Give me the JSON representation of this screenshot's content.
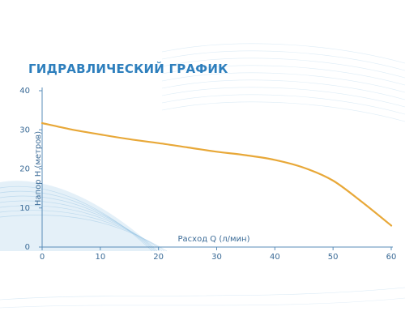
{
  "chart_data": {
    "type": "line",
    "title": "ГИДРАВЛИЧЕСКИЙ ГРАФИК",
    "xlabel": "Расход Q (л/мин)",
    "ylabel": "Напор Н (метров)",
    "xlim": [
      0,
      60
    ],
    "ylim": [
      0,
      40
    ],
    "x_ticks": [
      "0",
      "10",
      "20",
      "30",
      "40",
      "50",
      "60"
    ],
    "y_ticks": [
      "0",
      "10",
      "20",
      "30",
      "40"
    ],
    "grid": "none",
    "series": [
      {
        "color": "#e8a838",
        "points": [
          [
            0,
            31.7
          ],
          [
            5,
            30.1
          ],
          [
            10,
            28.8
          ],
          [
            15,
            27.6
          ],
          [
            20,
            26.6
          ],
          [
            25,
            25.5
          ],
          [
            30,
            24.4
          ],
          [
            35,
            23.5
          ],
          [
            40,
            22.3
          ],
          [
            45,
            20.3
          ],
          [
            50,
            17.0
          ],
          [
            55,
            11.5
          ],
          [
            60,
            5.5
          ]
        ]
      }
    ],
    "colors": {
      "title": "#2e7fbd",
      "axis": "#5a8db8",
      "ticks": "#3a6a96",
      "curve": "#e8a838",
      "decor": "#9ec8e6"
    }
  }
}
